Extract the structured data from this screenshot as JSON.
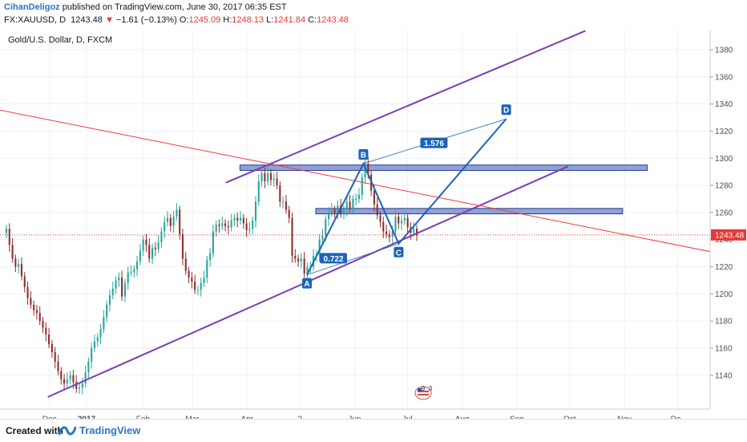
{
  "header": {
    "author": "CihanDeligoz",
    "published": "published on TradingView.com, June 30, 2017 06:35 EST",
    "symbol": "FX:XAUUSD, D",
    "last": "1243.48",
    "arrow": "▼",
    "change": "−1.61 (−0.13%)",
    "open_label": "O:",
    "open": "1245.09",
    "high_label": "H:",
    "high": "1248.13",
    "low_label": "L:",
    "low": "1241.84",
    "close_label": "C:",
    "close": "1243.48"
  },
  "footer": {
    "created": "Created with",
    "brand": "TradingView",
    "logo_icon": "tradingview-logo-icon"
  },
  "colors": {
    "up": "#26a69a",
    "down": "#8e2d2d",
    "channel": "#7b3fae",
    "trendline": "#ef3b3b",
    "pattern": "#1d63b7",
    "box_fill": "#6b82c8",
    "price_line": "#e53935"
  },
  "chart_data": {
    "type": "candlestick",
    "title": "Gold/U.S. Dollar, D, FXCM",
    "x_labels": [
      "Dec",
      "2017",
      "Feb",
      "Mar",
      "Apr",
      "2",
      "Jun",
      "Jul",
      "Aug",
      "Sep",
      "Oct",
      "Nov",
      "De"
    ],
    "y_ticks": [
      1140,
      1160,
      1180,
      1200,
      1220,
      1240,
      1260,
      1280,
      1300,
      1320,
      1340,
      1360,
      1380
    ],
    "ylim": [
      1118,
      1393
    ],
    "last_price": 1243.48,
    "last_price_label": "1243.48",
    "closes": [
      1248,
      1236,
      1226,
      1220,
      1222,
      1213,
      1205,
      1197,
      1192,
      1188,
      1186,
      1180,
      1175,
      1170,
      1163,
      1157,
      1150,
      1143,
      1137,
      1134,
      1137,
      1140,
      1135,
      1130,
      1131,
      1134,
      1142,
      1150,
      1160,
      1165,
      1168,
      1174,
      1183,
      1192,
      1199,
      1204,
      1210,
      1212,
      1198,
      1208,
      1216,
      1216,
      1218,
      1224,
      1232,
      1240,
      1236,
      1226,
      1234,
      1233,
      1238,
      1246,
      1253,
      1256,
      1250,
      1257,
      1262,
      1244,
      1226,
      1217,
      1212,
      1209,
      1203,
      1203,
      1208,
      1212,
      1225,
      1230,
      1246,
      1251,
      1250,
      1252,
      1250,
      1249,
      1254,
      1256,
      1254,
      1256,
      1252,
      1247,
      1248,
      1254,
      1268,
      1283,
      1289,
      1283,
      1289,
      1284,
      1285,
      1280,
      1268,
      1268,
      1262,
      1256,
      1228,
      1226,
      1224,
      1226,
      1215,
      1220,
      1220,
      1228,
      1229,
      1240,
      1243,
      1255,
      1260,
      1262,
      1260,
      1265,
      1259,
      1262,
      1268,
      1263,
      1270,
      1270,
      1273,
      1286,
      1296,
      1288,
      1276,
      1266,
      1258,
      1253,
      1246,
      1244,
      1242,
      1246,
      1257,
      1252,
      1254,
      1256,
      1249,
      1245,
      1248,
      1243
    ],
    "annotations": {
      "channel_upper": [
        [
          "2017-03-20",
          1282
        ],
        [
          "2017-10-10",
          1394
        ]
      ],
      "channel_lower": [
        [
          "2016-12-09",
          1124
        ],
        [
          "2017-09-30",
          1294
        ]
      ],
      "trendline": [
        [
          "2016-11-10",
          1336
        ],
        [
          "2017-12-28",
          1229
        ]
      ],
      "box_high": {
        "from": "2017-03-28",
        "to": "2017-11-14",
        "low": 1291,
        "high": 1295
      },
      "box_low": {
        "from": "2017-05-10",
        "to": "2017-10-31",
        "low": 1259,
        "high": 1263
      },
      "harmonic_points": [
        {
          "label": "A",
          "date": "2017-05-05",
          "value": 1214
        },
        {
          "label": "B",
          "date": "2017-06-06",
          "value": 1296
        },
        {
          "label": "C",
          "date": "2017-06-26",
          "value": 1237
        },
        {
          "label": "D",
          "date": "2017-08-26",
          "value": 1329
        }
      ],
      "ratios": [
        {
          "label": "0.722",
          "date": "2017-05-20",
          "value": 1226
        },
        {
          "label": "1.576",
          "date": "2017-07-16",
          "value": 1311
        }
      ],
      "events_icon": "flag-icon",
      "events_counts": [
        "9",
        "3"
      ]
    }
  }
}
